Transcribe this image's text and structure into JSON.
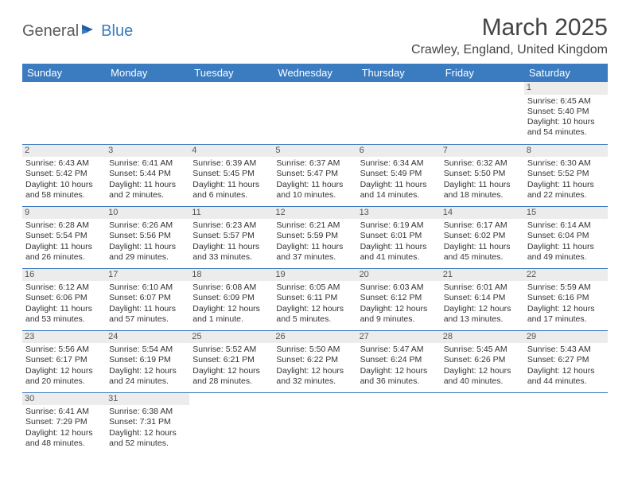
{
  "logo": {
    "part1": "General",
    "part2": "Blue"
  },
  "title": "March 2025",
  "location": "Crawley, England, United Kingdom",
  "colors": {
    "header_bg": "#3b7bbf",
    "header_text": "#ffffff",
    "border": "#3b7bbf",
    "daynum_bg": "#ececec",
    "body_text": "#333333"
  },
  "weekdays": [
    "Sunday",
    "Monday",
    "Tuesday",
    "Wednesday",
    "Thursday",
    "Friday",
    "Saturday"
  ],
  "weeks": [
    [
      {
        "empty": true
      },
      {
        "empty": true
      },
      {
        "empty": true
      },
      {
        "empty": true
      },
      {
        "empty": true
      },
      {
        "empty": true
      },
      {
        "day": "1",
        "sunrise": "Sunrise: 6:45 AM",
        "sunset": "Sunset: 5:40 PM",
        "daylight1": "Daylight: 10 hours",
        "daylight2": "and 54 minutes."
      }
    ],
    [
      {
        "day": "2",
        "sunrise": "Sunrise: 6:43 AM",
        "sunset": "Sunset: 5:42 PM",
        "daylight1": "Daylight: 10 hours",
        "daylight2": "and 58 minutes."
      },
      {
        "day": "3",
        "sunrise": "Sunrise: 6:41 AM",
        "sunset": "Sunset: 5:44 PM",
        "daylight1": "Daylight: 11 hours",
        "daylight2": "and 2 minutes."
      },
      {
        "day": "4",
        "sunrise": "Sunrise: 6:39 AM",
        "sunset": "Sunset: 5:45 PM",
        "daylight1": "Daylight: 11 hours",
        "daylight2": "and 6 minutes."
      },
      {
        "day": "5",
        "sunrise": "Sunrise: 6:37 AM",
        "sunset": "Sunset: 5:47 PM",
        "daylight1": "Daylight: 11 hours",
        "daylight2": "and 10 minutes."
      },
      {
        "day": "6",
        "sunrise": "Sunrise: 6:34 AM",
        "sunset": "Sunset: 5:49 PM",
        "daylight1": "Daylight: 11 hours",
        "daylight2": "and 14 minutes."
      },
      {
        "day": "7",
        "sunrise": "Sunrise: 6:32 AM",
        "sunset": "Sunset: 5:50 PM",
        "daylight1": "Daylight: 11 hours",
        "daylight2": "and 18 minutes."
      },
      {
        "day": "8",
        "sunrise": "Sunrise: 6:30 AM",
        "sunset": "Sunset: 5:52 PM",
        "daylight1": "Daylight: 11 hours",
        "daylight2": "and 22 minutes."
      }
    ],
    [
      {
        "day": "9",
        "sunrise": "Sunrise: 6:28 AM",
        "sunset": "Sunset: 5:54 PM",
        "daylight1": "Daylight: 11 hours",
        "daylight2": "and 26 minutes."
      },
      {
        "day": "10",
        "sunrise": "Sunrise: 6:26 AM",
        "sunset": "Sunset: 5:56 PM",
        "daylight1": "Daylight: 11 hours",
        "daylight2": "and 29 minutes."
      },
      {
        "day": "11",
        "sunrise": "Sunrise: 6:23 AM",
        "sunset": "Sunset: 5:57 PM",
        "daylight1": "Daylight: 11 hours",
        "daylight2": "and 33 minutes."
      },
      {
        "day": "12",
        "sunrise": "Sunrise: 6:21 AM",
        "sunset": "Sunset: 5:59 PM",
        "daylight1": "Daylight: 11 hours",
        "daylight2": "and 37 minutes."
      },
      {
        "day": "13",
        "sunrise": "Sunrise: 6:19 AM",
        "sunset": "Sunset: 6:01 PM",
        "daylight1": "Daylight: 11 hours",
        "daylight2": "and 41 minutes."
      },
      {
        "day": "14",
        "sunrise": "Sunrise: 6:17 AM",
        "sunset": "Sunset: 6:02 PM",
        "daylight1": "Daylight: 11 hours",
        "daylight2": "and 45 minutes."
      },
      {
        "day": "15",
        "sunrise": "Sunrise: 6:14 AM",
        "sunset": "Sunset: 6:04 PM",
        "daylight1": "Daylight: 11 hours",
        "daylight2": "and 49 minutes."
      }
    ],
    [
      {
        "day": "16",
        "sunrise": "Sunrise: 6:12 AM",
        "sunset": "Sunset: 6:06 PM",
        "daylight1": "Daylight: 11 hours",
        "daylight2": "and 53 minutes."
      },
      {
        "day": "17",
        "sunrise": "Sunrise: 6:10 AM",
        "sunset": "Sunset: 6:07 PM",
        "daylight1": "Daylight: 11 hours",
        "daylight2": "and 57 minutes."
      },
      {
        "day": "18",
        "sunrise": "Sunrise: 6:08 AM",
        "sunset": "Sunset: 6:09 PM",
        "daylight1": "Daylight: 12 hours",
        "daylight2": "and 1 minute."
      },
      {
        "day": "19",
        "sunrise": "Sunrise: 6:05 AM",
        "sunset": "Sunset: 6:11 PM",
        "daylight1": "Daylight: 12 hours",
        "daylight2": "and 5 minutes."
      },
      {
        "day": "20",
        "sunrise": "Sunrise: 6:03 AM",
        "sunset": "Sunset: 6:12 PM",
        "daylight1": "Daylight: 12 hours",
        "daylight2": "and 9 minutes."
      },
      {
        "day": "21",
        "sunrise": "Sunrise: 6:01 AM",
        "sunset": "Sunset: 6:14 PM",
        "daylight1": "Daylight: 12 hours",
        "daylight2": "and 13 minutes."
      },
      {
        "day": "22",
        "sunrise": "Sunrise: 5:59 AM",
        "sunset": "Sunset: 6:16 PM",
        "daylight1": "Daylight: 12 hours",
        "daylight2": "and 17 minutes."
      }
    ],
    [
      {
        "day": "23",
        "sunrise": "Sunrise: 5:56 AM",
        "sunset": "Sunset: 6:17 PM",
        "daylight1": "Daylight: 12 hours",
        "daylight2": "and 20 minutes."
      },
      {
        "day": "24",
        "sunrise": "Sunrise: 5:54 AM",
        "sunset": "Sunset: 6:19 PM",
        "daylight1": "Daylight: 12 hours",
        "daylight2": "and 24 minutes."
      },
      {
        "day": "25",
        "sunrise": "Sunrise: 5:52 AM",
        "sunset": "Sunset: 6:21 PM",
        "daylight1": "Daylight: 12 hours",
        "daylight2": "and 28 minutes."
      },
      {
        "day": "26",
        "sunrise": "Sunrise: 5:50 AM",
        "sunset": "Sunset: 6:22 PM",
        "daylight1": "Daylight: 12 hours",
        "daylight2": "and 32 minutes."
      },
      {
        "day": "27",
        "sunrise": "Sunrise: 5:47 AM",
        "sunset": "Sunset: 6:24 PM",
        "daylight1": "Daylight: 12 hours",
        "daylight2": "and 36 minutes."
      },
      {
        "day": "28",
        "sunrise": "Sunrise: 5:45 AM",
        "sunset": "Sunset: 6:26 PM",
        "daylight1": "Daylight: 12 hours",
        "daylight2": "and 40 minutes."
      },
      {
        "day": "29",
        "sunrise": "Sunrise: 5:43 AM",
        "sunset": "Sunset: 6:27 PM",
        "daylight1": "Daylight: 12 hours",
        "daylight2": "and 44 minutes."
      }
    ],
    [
      {
        "day": "30",
        "sunrise": "Sunrise: 6:41 AM",
        "sunset": "Sunset: 7:29 PM",
        "daylight1": "Daylight: 12 hours",
        "daylight2": "and 48 minutes."
      },
      {
        "day": "31",
        "sunrise": "Sunrise: 6:38 AM",
        "sunset": "Sunset: 7:31 PM",
        "daylight1": "Daylight: 12 hours",
        "daylight2": "and 52 minutes."
      },
      {
        "empty": true
      },
      {
        "empty": true
      },
      {
        "empty": true
      },
      {
        "empty": true
      },
      {
        "empty": true
      }
    ]
  ]
}
